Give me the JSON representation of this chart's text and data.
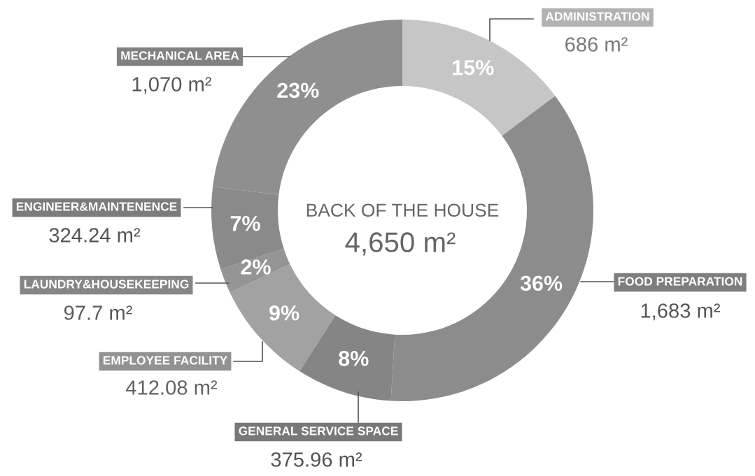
{
  "chart_data": {
    "type": "donut",
    "title": "BACK OF THE HOUSE",
    "subtitle": "4,650 m²",
    "categories": [
      "ADMINISTRATION",
      "FOOD PREPARATION",
      "GENERAL SERVICE SPACE",
      "EMPLOYEE FACILITY",
      "LAUNDRY&HOUSEKEEPING",
      "ENGINEER&MAINTENENCE",
      "MECHANICAL AREA"
    ],
    "values": [
      686,
      1683,
      375.96,
      412.08,
      97.7,
      324.24,
      1070
    ],
    "value_labels": [
      "686 m²",
      "1,683 m²",
      "375.96 m²",
      "412.08 m²",
      "97.7 m²",
      "324.24 m²",
      "1,070 m²"
    ],
    "colors": [
      "#c6c6c6",
      "#8c8c8c",
      "#858585",
      "#a2a2a2",
      "#959595",
      "#8a8a8a",
      "#8f8f8f"
    ],
    "annotations": [
      {
        "text": "15%",
        "x": "ADMINISTRATION"
      },
      {
        "text": "36%",
        "x": "FOOD PREPARATION"
      },
      {
        "text": "8%",
        "x": "GENERAL SERVICE SPACE"
      },
      {
        "text": "9%",
        "x": "EMPLOYEE FACILITY"
      },
      {
        "text": "2%",
        "x": "LAUNDRY&HOUSEKEEPING"
      },
      {
        "text": "7%",
        "x": "ENGINEER&MAINTENENCE"
      },
      {
        "text": "23%",
        "x": "MECHANICAL AREA"
      }
    ]
  }
}
